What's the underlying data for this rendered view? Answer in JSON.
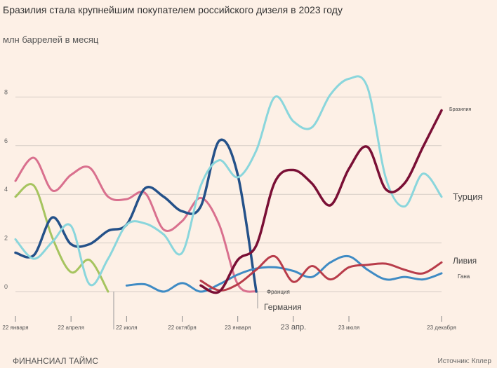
{
  "chart_data": {
    "type": "line",
    "title": "Бразилия стала крупнейшим покупателем российского дизеля в 2023 году",
    "ylabel": "млн баррелей в месяц",
    "ylim": [
      0,
      8
    ],
    "yticks": [
      "0",
      "2",
      "4",
      "6",
      "8"
    ],
    "grid": true,
    "x_ticks": [
      {
        "m": 0,
        "label": "22 января"
      },
      {
        "m": 3,
        "label": "22 апреля"
      },
      {
        "m": 6,
        "label": "22 июля"
      },
      {
        "m": 9,
        "label": "22 октября"
      },
      {
        "m": 12,
        "label": "23 января"
      },
      {
        "m": 15,
        "label": "23 апр."
      },
      {
        "m": 18,
        "label": "23 июля"
      },
      {
        "m": 23,
        "label": "23 декабря"
      }
    ],
    "x_start": "2022-01",
    "x_end": "2023-12",
    "series": [
      {
        "name": "",
        "color": "#a6c45f",
        "start": 0,
        "values": [
          3.9,
          4.35,
          2.2,
          0.8,
          1.3,
          0
        ]
      },
      {
        "name": "Франция",
        "color": "#d9708e",
        "start": 0,
        "values": [
          4.55,
          5.5,
          4.15,
          4.8,
          5.1,
          3.9,
          3.8,
          4.05,
          2.55,
          2.9,
          3.85,
          2.75,
          0.3,
          0
        ]
      },
      {
        "name": "Германия",
        "color": "#245189",
        "start": 0,
        "values": [
          1.6,
          1.5,
          3.05,
          1.95,
          1.95,
          2.5,
          2.75,
          4.25,
          3.9,
          3.3,
          3.5,
          6.2,
          4.8,
          0
        ]
      },
      {
        "name": "Турция",
        "color": "#8ad6dc",
        "start": 0,
        "values": [
          2.15,
          1.35,
          2.05,
          2.7,
          0.3,
          1.35,
          2.75,
          2.8,
          2.35,
          1.6,
          4.35,
          5.4,
          4.7,
          5.8,
          8.0,
          7.0,
          6.75,
          8.1,
          8.75,
          8.4,
          4.65,
          3.5,
          4.85,
          3.9
        ]
      },
      {
        "name": "Гана",
        "color": "#3f8bc4",
        "start": 6,
        "values": [
          0.25,
          0.3,
          0,
          0.35,
          0,
          0.3,
          0.7,
          0.95,
          1.0,
          0.85,
          0.6,
          1.2,
          1.45,
          0.9,
          0.5,
          0.6,
          0.5,
          0.75
        ]
      },
      {
        "name": "Ливия",
        "color": "#b83c4a",
        "start": 10,
        "values": [
          0.45,
          0.05,
          0.3,
          0.9,
          1.45,
          0.4,
          1.05,
          0.5,
          1.0,
          1.1,
          1.15,
          0.9,
          0.75,
          1.2
        ]
      },
      {
        "name": "Бразилия",
        "color": "#7a0f35",
        "start": 10,
        "values": [
          0.25,
          0.0,
          1.3,
          1.9,
          4.5,
          5.0,
          4.45,
          3.55,
          5.05,
          5.95,
          4.2,
          4.45,
          5.95,
          7.45
        ]
      }
    ]
  },
  "footer": "ФИНАНСИАЛ ТАЙМС",
  "source": "Источник: Кплер"
}
